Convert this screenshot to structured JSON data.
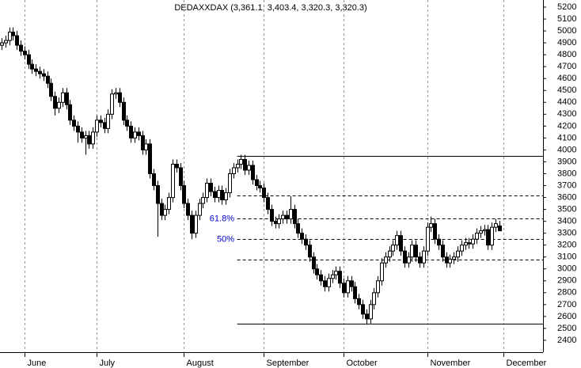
{
  "chart_data": {
    "type": "candlestick",
    "title": "DEDAXXDAX (3,361.1, 3,403.4, 3,320.3, 3,320.3)",
    "categories": [
      null,
      null,
      null,
      null,
      null,
      null,
      "June",
      null,
      null,
      null,
      null,
      null,
      null,
      null,
      null,
      null,
      null,
      null,
      null,
      null,
      null,
      null,
      null,
      null,
      null,
      "July",
      null,
      null,
      null,
      null,
      null,
      null,
      null,
      null,
      null,
      null,
      null,
      null,
      null,
      null,
      null,
      null,
      null,
      null,
      null,
      null,
      null,
      null,
      "August",
      null,
      null,
      null,
      null,
      null,
      null,
      null,
      null,
      null,
      null,
      null,
      null,
      null,
      null,
      null,
      null,
      null,
      null,
      null,
      null,
      "September",
      null,
      null,
      null,
      null,
      null,
      null,
      null,
      null,
      null,
      null,
      null,
      null,
      null,
      null,
      null,
      null,
      null,
      null,
      null,
      null,
      "October",
      null,
      null,
      null,
      null,
      null,
      null,
      null,
      null,
      null,
      null,
      null,
      null,
      null,
      null,
      null,
      null,
      null,
      null,
      null,
      null,
      null,
      "November",
      null,
      null,
      null,
      null,
      null,
      null,
      null,
      null,
      null,
      null,
      null,
      null,
      null,
      null,
      null,
      null,
      null,
      null,
      null,
      "December"
    ],
    "open": [
      4880,
      4900,
      4920,
      4990,
      4960,
      4880,
      4830,
      4800,
      4720,
      4680,
      4660,
      4640,
      4620,
      4560,
      4450,
      4350,
      4400,
      4480,
      4380,
      4250,
      4200,
      4150,
      4100,
      4120,
      4050,
      4150,
      4250,
      4230,
      4180,
      4300,
      4470,
      4480,
      4400,
      4250,
      4200,
      4100,
      4150,
      4120,
      4000,
      4050,
      3800,
      3700,
      3550,
      3450,
      3500,
      3600,
      3880,
      3850,
      3700,
      3550,
      3450,
      3300,
      3450,
      3550,
      3600,
      3720,
      3650,
      3600,
      3660,
      3580,
      3640,
      3800,
      3850,
      3880,
      3920,
      3830,
      3870,
      3750,
      3700,
      3680,
      3600,
      3500,
      3400,
      3380,
      3420,
      3450,
      3420,
      3500,
      3380,
      3300,
      3250,
      3200,
      3100,
      3000,
      2950,
      2900,
      2850,
      2920,
      2950,
      2980,
      2880,
      2800,
      2900,
      2850,
      2750,
      2700,
      2620,
      2580,
      2700,
      2800,
      2900,
      3050,
      3100,
      3150,
      3200,
      3280,
      3150,
      3050,
      3100,
      3200,
      3100,
      3050,
      3150,
      3350,
      3380,
      3250,
      3200,
      3100,
      3050,
      3080,
      3100,
      3150,
      3200,
      3220,
      3210,
      3250,
      3300,
      3320,
      3330,
      3200,
      3350,
      3361.1,
      null
    ],
    "high": [
      4940,
      4960,
      5030,
      5030,
      5000,
      4920,
      4870,
      4840,
      4760,
      4720,
      4700,
      4680,
      4660,
      4600,
      4490,
      4440,
      4520,
      4520,
      4420,
      4290,
      4240,
      4190,
      4160,
      4160,
      4190,
      4290,
      4290,
      4270,
      4340,
      4510,
      4520,
      4520,
      4440,
      4290,
      4240,
      4190,
      4190,
      4160,
      4090,
      4090,
      3840,
      3740,
      3590,
      3540,
      3640,
      3920,
      3920,
      3890,
      3740,
      3590,
      3490,
      3490,
      3590,
      3640,
      3760,
      3760,
      3690,
      3700,
      3700,
      3680,
      3840,
      3890,
      3920,
      3960,
      3960,
      3910,
      3910,
      3790,
      3740,
      3720,
      3640,
      3540,
      3440,
      3460,
      3490,
      3490,
      3610,
      3540,
      3420,
      3340,
      3290,
      3240,
      3140,
      3040,
      2990,
      2940,
      2960,
      2990,
      3020,
      3020,
      2920,
      2940,
      2940,
      2890,
      2790,
      2740,
      2660,
      2740,
      2840,
      2940,
      3090,
      3140,
      3190,
      3240,
      3320,
      3320,
      3190,
      3140,
      3240,
      3240,
      3140,
      3190,
      3390,
      3440,
      3420,
      3290,
      3240,
      3140,
      3120,
      3140,
      3190,
      3240,
      3260,
      3260,
      3290,
      3340,
      3360,
      3370,
      3370,
      3390,
      3420,
      3403.4,
      null
    ],
    "low": [
      4840,
      4860,
      4880,
      4920,
      4840,
      4790,
      4760,
      4680,
      4640,
      4620,
      4600,
      4580,
      4520,
      4410,
      4290,
      4310,
      4360,
      4340,
      4210,
      4160,
      4060,
      4060,
      3960,
      4010,
      4010,
      4110,
      4190,
      4140,
      4140,
      4260,
      4430,
      4360,
      4210,
      4160,
      4060,
      4060,
      4080,
      3960,
      3960,
      3760,
      3660,
      3270,
      3410,
      3410,
      3460,
      3560,
      3810,
      3660,
      3510,
      3410,
      3250,
      3260,
      3410,
      3510,
      3560,
      3610,
      3560,
      3560,
      3540,
      3540,
      3600,
      3760,
      3810,
      3840,
      3790,
      3790,
      3710,
      3660,
      3640,
      3560,
      3460,
      3360,
      3340,
      3340,
      3380,
      3380,
      3380,
      3340,
      3260,
      3210,
      3160,
      3060,
      2960,
      2910,
      2860,
      2810,
      2810,
      2880,
      2910,
      2840,
      2760,
      2760,
      2810,
      2710,
      2660,
      2580,
      2530,
      2540,
      2660,
      2760,
      2860,
      3010,
      3060,
      3110,
      3160,
      3110,
      3010,
      3010,
      3060,
      3060,
      3010,
      3010,
      3110,
      3310,
      3210,
      3160,
      3060,
      3010,
      3010,
      3040,
      3060,
      3110,
      3160,
      3170,
      3170,
      3210,
      3260,
      3280,
      3160,
      3160,
      3310,
      3320.3,
      null
    ],
    "close": [
      4900,
      4920,
      4990,
      4960,
      4880,
      4830,
      4800,
      4720,
      4680,
      4660,
      4640,
      4620,
      4560,
      4450,
      4350,
      4400,
      4480,
      4380,
      4250,
      4200,
      4150,
      4100,
      4120,
      4050,
      4150,
      4250,
      4230,
      4180,
      4300,
      4470,
      4480,
      4400,
      4250,
      4200,
      4100,
      4150,
      4120,
      4000,
      4050,
      3800,
      3700,
      3550,
      3450,
      3500,
      3600,
      3880,
      3850,
      3700,
      3550,
      3450,
      3300,
      3450,
      3550,
      3600,
      3720,
      3650,
      3600,
      3660,
      3580,
      3640,
      3800,
      3850,
      3880,
      3920,
      3830,
      3870,
      3750,
      3700,
      3680,
      3600,
      3500,
      3400,
      3380,
      3420,
      3450,
      3420,
      3500,
      3380,
      3300,
      3250,
      3200,
      3100,
      3000,
      2950,
      2900,
      2850,
      2920,
      2950,
      2980,
      2880,
      2800,
      2900,
      2850,
      2750,
      2700,
      2620,
      2580,
      2700,
      2800,
      2900,
      3050,
      3100,
      3150,
      3200,
      3280,
      3150,
      3050,
      3100,
      3200,
      3100,
      3050,
      3150,
      3350,
      3380,
      3250,
      3200,
      3100,
      3050,
      3080,
      3100,
      3150,
      3200,
      3220,
      3210,
      3250,
      3300,
      3320,
      3330,
      3200,
      3350,
      3380,
      3320.3,
      null
    ],
    "ylim": [
      2300,
      5260
    ],
    "yticks": [
      2400,
      2500,
      2600,
      2700,
      2800,
      2900,
      3000,
      3100,
      3200,
      3300,
      3400,
      3500,
      3600,
      3700,
      3800,
      3900,
      4000,
      4100,
      4200,
      4300,
      4400,
      4500,
      4600,
      4700,
      4800,
      4900,
      5000,
      5100,
      5200
    ],
    "grid": true,
    "levels": [
      {
        "value": 3950,
        "style": "solid"
      },
      {
        "value": 3620,
        "style": "dashed"
      },
      {
        "value": 3425,
        "style": "dashed",
        "label": "61.8%"
      },
      {
        "value": 3250,
        "style": "dashed",
        "label": "50%"
      },
      {
        "value": 3080,
        "style": "dashed"
      },
      {
        "value": 2540,
        "style": "solid"
      }
    ],
    "level_label_color": "#0000cc"
  }
}
